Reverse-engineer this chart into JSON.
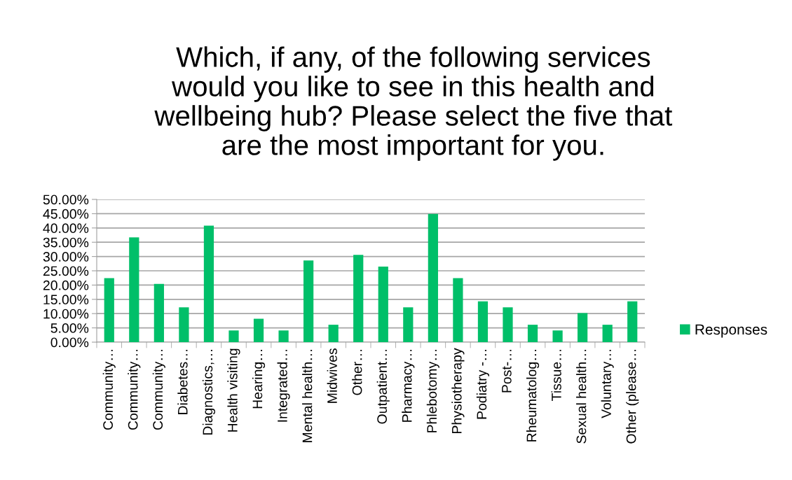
{
  "chart_data": {
    "type": "bar",
    "title": "Which, if any, of the following services\nwould you like to see in this health and\nwellbeing hub? Please select the five that\nare the most important for you.",
    "categories": [
      "Community…",
      "Community…",
      "Community…",
      "Diabetes…",
      "Diagnostics,…",
      "Health visiting",
      "Hearing…",
      "Integrated…",
      "Mental health…",
      "Midwives",
      "Other…",
      "Outpatient…",
      "Pharmacy…",
      "Phlebotomy…",
      "Physiotherapy",
      "Podiatry -…",
      "Post-…",
      "Rheumatolog…",
      "Tissue…",
      "Sexual health…",
      "Voluntary…",
      "Other (please…"
    ],
    "series": [
      {
        "name": "Responses",
        "color": "#00bf69",
        "values": [
          22.4,
          36.7,
          20.4,
          12.2,
          40.8,
          4.1,
          8.2,
          4.1,
          28.6,
          6.1,
          30.6,
          26.5,
          12.2,
          44.9,
          22.4,
          14.3,
          12.2,
          6.1,
          4.1,
          10.2,
          6.1,
          14.3
        ]
      }
    ],
    "ylim": [
      0,
      50
    ],
    "yticks": [
      {
        "value": 0,
        "label": "0.00%"
      },
      {
        "value": 5,
        "label": "5.00%"
      },
      {
        "value": 10,
        "label": "10.00%"
      },
      {
        "value": 15,
        "label": "15.00%"
      },
      {
        "value": 20,
        "label": "20.00%"
      },
      {
        "value": 25,
        "label": "25.00%"
      },
      {
        "value": 30,
        "label": "30.00%"
      },
      {
        "value": 35,
        "label": "35.00%"
      },
      {
        "value": 40,
        "label": "40.00%"
      },
      {
        "value": 45,
        "label": "45.00%"
      },
      {
        "value": 50,
        "label": "50.00%"
      }
    ],
    "grid": "y",
    "legend": "right"
  }
}
